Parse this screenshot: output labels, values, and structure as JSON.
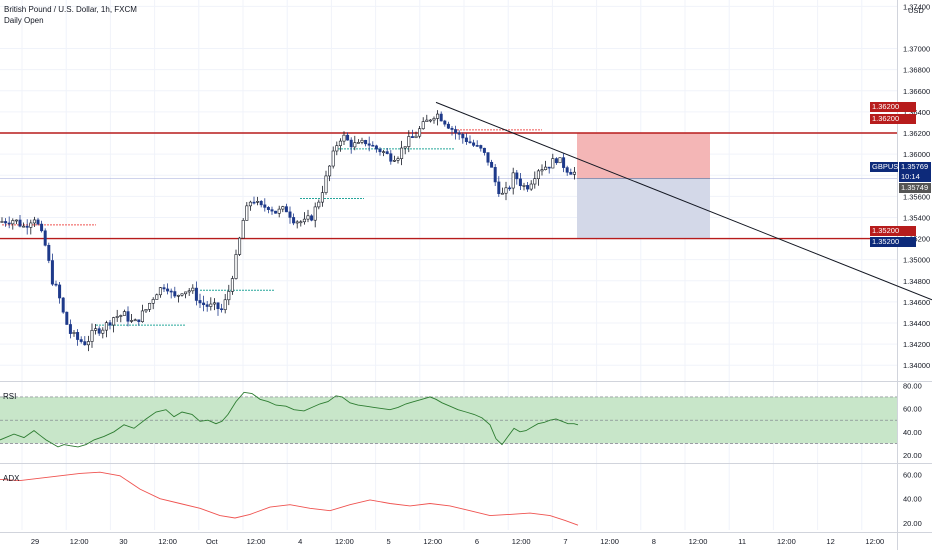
{
  "header": {
    "symbol_line": "British Pound / U.S. Dollar, 1h, FXCM",
    "indicator": "Daily Open",
    "currency": "USD"
  },
  "colors": {
    "bull": "#131722",
    "bear": "#1e3a8a",
    "resistance": "#b71c1c",
    "support": "#b71c1c",
    "daily_open": "#26a69a",
    "rsi_line": "#2e7d32",
    "rsi_fill": "#c8e6c9",
    "adx_line": "#ef5350",
    "loss_zone": "#f4b6b6",
    "profit_zone": "#d3d8e8",
    "trendline": "#131722",
    "label_red": "#b71c1c",
    "label_navy": "#0d2a7a",
    "label_gray": "#555555"
  },
  "chart_data": [
    {
      "type": "candlestick",
      "title": "British Pound / U.S. Dollar, 1h, FXCM",
      "x_ticks": [
        "29",
        "12:00",
        "30",
        "12:00",
        "Oct",
        "12:00",
        "4",
        "12:00",
        "5",
        "12:00",
        "6",
        "12:00",
        "7",
        "12:00",
        "8",
        "12:00",
        "11",
        "12:00",
        "12",
        "12:00"
      ],
      "y_ticks": [
        "1.37400",
        "1.37000",
        "1.36800",
        "1.36600",
        "1.36400",
        "1.36200",
        "1.36000",
        "1.35800",
        "1.35600",
        "1.35400",
        "1.35200",
        "1.35000",
        "1.34800",
        "1.34600",
        "1.34400",
        "1.34200",
        "1.34000"
      ],
      "ylim": [
        1.3386,
        1.3746
      ],
      "grid": true,
      "close_path": [
        [
          0,
          1.3536
        ],
        [
          14,
          1.3538
        ],
        [
          24,
          1.3531
        ],
        [
          34,
          1.3541
        ],
        [
          40,
          1.3528
        ],
        [
          46,
          1.3511
        ],
        [
          52,
          1.3481
        ],
        [
          58,
          1.3469
        ],
        [
          64,
          1.3446
        ],
        [
          70,
          1.3431
        ],
        [
          78,
          1.3424
        ],
        [
          86,
          1.3421
        ],
        [
          94,
          1.3432
        ],
        [
          104,
          1.3436
        ],
        [
          114,
          1.3446
        ],
        [
          124,
          1.3448
        ],
        [
          134,
          1.3439
        ],
        [
          146,
          1.3453
        ],
        [
          156,
          1.3469
        ],
        [
          166,
          1.3477
        ],
        [
          174,
          1.3463
        ],
        [
          182,
          1.3471
        ],
        [
          192,
          1.3471
        ],
        [
          200,
          1.3459
        ],
        [
          208,
          1.3456
        ],
        [
          216,
          1.3455
        ],
        [
          222,
          1.3452
        ],
        [
          228,
          1.3467
        ],
        [
          236,
          1.3501
        ],
        [
          244,
          1.3541
        ],
        [
          252,
          1.3559
        ],
        [
          260,
          1.3549
        ],
        [
          268,
          1.3551
        ],
        [
          276,
          1.3545
        ],
        [
          286,
          1.3548
        ],
        [
          294,
          1.3538
        ],
        [
          304,
          1.3535
        ],
        [
          312,
          1.3541
        ],
        [
          320,
          1.3559
        ],
        [
          328,
          1.3583
        ],
        [
          336,
          1.3608
        ],
        [
          342,
          1.3618
        ],
        [
          350,
          1.361
        ],
        [
          358,
          1.3608
        ],
        [
          366,
          1.3612
        ],
        [
          374,
          1.3606
        ],
        [
          382,
          1.3603
        ],
        [
          390,
          1.3597
        ],
        [
          398,
          1.3599
        ],
        [
          406,
          1.3611
        ],
        [
          414,
          1.3616
        ],
        [
          422,
          1.3626
        ],
        [
          430,
          1.3634
        ],
        [
          436,
          1.3639
        ],
        [
          442,
          1.3634
        ],
        [
          450,
          1.3626
        ],
        [
          458,
          1.3618
        ],
        [
          466,
          1.3614
        ],
        [
          474,
          1.3608
        ],
        [
          482,
          1.3603
        ],
        [
          490,
          1.3591
        ],
        [
          496,
          1.3571
        ],
        [
          502,
          1.3561
        ],
        [
          508,
          1.3566
        ],
        [
          514,
          1.3581
        ],
        [
          520,
          1.3573
        ],
        [
          526,
          1.3568
        ],
        [
          532,
          1.3576
        ],
        [
          538,
          1.3586
        ],
        [
          544,
          1.3588
        ],
        [
          550,
          1.359
        ],
        [
          556,
          1.3596
        ],
        [
          562,
          1.3591
        ],
        [
          568,
          1.3585
        ],
        [
          574,
          1.3583
        ],
        [
          578,
          1.35769
        ]
      ],
      "current_price": "1.35769",
      "bar_countdown": "10:14",
      "ask_price": "1.35749",
      "symbol_tag": "GBPUSD",
      "resistance_level": "1.36200",
      "support_level": "1.35200",
      "trendline": {
        "start": [
          436,
          1.3649
        ],
        "end": [
          932,
          1.3462
        ]
      },
      "daily_open_segments": [
        {
          "x": [
            2,
            96
          ],
          "y": 1.3533
        },
        {
          "x": [
            96,
            186
          ],
          "y": 1.3438
        },
        {
          "x": [
            200,
            274
          ],
          "y": 1.3471
        },
        {
          "x": [
            300,
            364
          ],
          "y": 1.3558
        },
        {
          "x": [
            338,
            454
          ],
          "y": 1.3605
        },
        {
          "x": [
            454,
            542
          ],
          "y": 1.3623
        }
      ],
      "position": {
        "entry": 1.35769,
        "stop": 1.362,
        "target": 1.352,
        "x": [
          577,
          710
        ]
      }
    },
    {
      "type": "line",
      "title": "RSI",
      "y_ticks": [
        "80.00",
        "60.00",
        "40.00",
        "20.00"
      ],
      "ylim": [
        14,
        82
      ],
      "band": [
        30,
        70
      ],
      "midline": 50,
      "x": [
        0,
        14,
        24,
        34,
        40,
        46,
        52,
        58,
        64,
        70,
        78,
        86,
        94,
        104,
        114,
        124,
        134,
        146,
        156,
        166,
        174,
        182,
        192,
        200,
        208,
        216,
        222,
        228,
        236,
        244,
        252,
        260,
        268,
        276,
        286,
        294,
        304,
        312,
        320,
        328,
        336,
        342,
        350,
        358,
        366,
        374,
        382,
        390,
        398,
        406,
        414,
        422,
        430,
        436,
        442,
        450,
        458,
        466,
        474,
        482,
        490,
        496,
        502,
        508,
        514,
        520,
        526,
        532,
        538,
        544,
        550,
        556,
        562,
        568,
        574,
        578
      ],
      "values": [
        33,
        38,
        35,
        41,
        37,
        33,
        30,
        27,
        29,
        28,
        27,
        29,
        33,
        36,
        40,
        46,
        43,
        51,
        57,
        59,
        53,
        57,
        55,
        49,
        50,
        47,
        49,
        55,
        66,
        74,
        73,
        68,
        66,
        63,
        62,
        59,
        58,
        61,
        64,
        66,
        71,
        70,
        65,
        63,
        62,
        61,
        60,
        59,
        61,
        64,
        66,
        68,
        70,
        68,
        65,
        62,
        59,
        57,
        55,
        52,
        46,
        34,
        29,
        36,
        43,
        40,
        41,
        44,
        47,
        48,
        50,
        51,
        49,
        47,
        47,
        46
      ]
    },
    {
      "type": "line",
      "title": "ADX",
      "y_ticks": [
        "60.00",
        "40.00",
        "20.00"
      ],
      "ylim": [
        14,
        68
      ],
      "x": [
        0,
        20,
        40,
        60,
        80,
        100,
        120,
        140,
        160,
        180,
        200,
        220,
        235,
        250,
        270,
        290,
        310,
        330,
        350,
        370,
        390,
        410,
        430,
        450,
        470,
        490,
        510,
        530,
        550,
        565,
        578
      ],
      "values": [
        56,
        55,
        57,
        59,
        61,
        62,
        59,
        48,
        40,
        36,
        32,
        26,
        24,
        27,
        33,
        35,
        32,
        30,
        35,
        39,
        36,
        34,
        36,
        34,
        30,
        26,
        27,
        28,
        26,
        22,
        18
      ]
    }
  ]
}
